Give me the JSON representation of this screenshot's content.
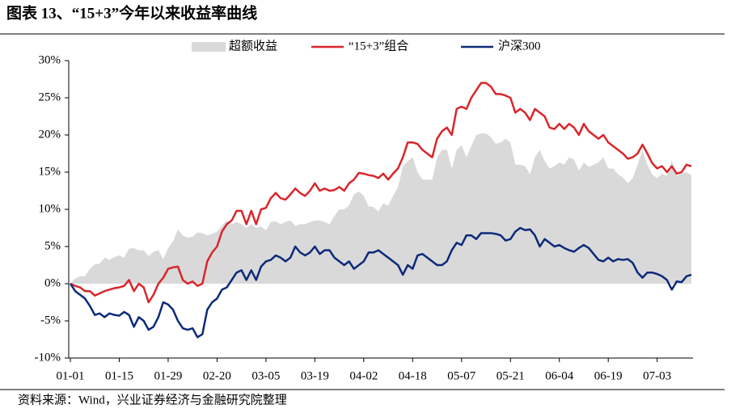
{
  "chart_data": {
    "type": "line",
    "title": "图表 13、“15+3”今年以来收益率曲线",
    "source": "资料来源：Wind，兴业证券经济与金融研究院整理",
    "categories": [
      "01-01",
      null,
      null,
      null,
      null,
      null,
      null,
      null,
      null,
      null,
      "01-15",
      null,
      null,
      null,
      null,
      null,
      null,
      null,
      null,
      null,
      "01-29",
      null,
      null,
      null,
      null,
      null,
      null,
      null,
      null,
      null,
      "02-20",
      null,
      null,
      null,
      null,
      null,
      null,
      null,
      null,
      null,
      "03-05",
      null,
      null,
      null,
      null,
      null,
      null,
      null,
      null,
      null,
      "03-19",
      null,
      null,
      null,
      null,
      null,
      null,
      null,
      null,
      null,
      "04-02",
      null,
      null,
      null,
      null,
      null,
      null,
      null,
      null,
      null,
      "04-18",
      null,
      null,
      null,
      null,
      null,
      null,
      null,
      null,
      null,
      "05-07",
      null,
      null,
      null,
      null,
      null,
      null,
      null,
      null,
      null,
      "05-21",
      null,
      null,
      null,
      null,
      null,
      null,
      null,
      null,
      null,
      "06-04",
      null,
      null,
      null,
      null,
      null,
      null,
      null,
      null,
      null,
      "06-19",
      null,
      null,
      null,
      null,
      null,
      null,
      null,
      null,
      null,
      "07-03",
      null,
      null,
      null,
      null,
      null,
      null,
      null
    ],
    "ylim": [
      -10,
      30
    ],
    "yticks": [
      {
        "value": -10,
        "label": "-10%"
      },
      {
        "value": -5,
        "label": "-5%"
      },
      {
        "value": 0,
        "label": "0%"
      },
      {
        "value": 5,
        "label": "5%"
      },
      {
        "value": 10,
        "label": "10%"
      },
      {
        "value": 15,
        "label": "15%"
      },
      {
        "value": 20,
        "label": "20%"
      },
      {
        "value": 25,
        "label": "25%"
      },
      {
        "value": 30,
        "label": "30%"
      }
    ],
    "grid": false,
    "legend": "top",
    "series": [
      {
        "name": "超额收益",
        "type": "area",
        "color": "#d9d9d9",
        "values": [
          0,
          0.7,
          1,
          1,
          2,
          2.6,
          2.7,
          3.5,
          3.2,
          3.6,
          3.8,
          3.5,
          4.7,
          4.8,
          4.5,
          4.5,
          3.7,
          4.3,
          4.5,
          3.3,
          4.8,
          5.7,
          7.3,
          6.5,
          6.2,
          6.3,
          6.9,
          6.8,
          6.5,
          6.7,
          7,
          7.8,
          8.5,
          8,
          8.3,
          8,
          7.5,
          8,
          7.5,
          7.7,
          7.2,
          8.3,
          8.4,
          8,
          8.3,
          8.5,
          7.8,
          8,
          8,
          8.3,
          8.5,
          8.5,
          8.3,
          8,
          9.1,
          10,
          10,
          10.5,
          12,
          12.4,
          11.8,
          10.4,
          10.3,
          9.7,
          10.8,
          10.5,
          11.8,
          13,
          15.8,
          16.5,
          17,
          15,
          14,
          14,
          14,
          17,
          18,
          18,
          15.5,
          18,
          18.6,
          17,
          18.5,
          20,
          20.2,
          20.2,
          19.7,
          18.8,
          19,
          19.5,
          19,
          16,
          16,
          15.8,
          14.7,
          17,
          18,
          16.5,
          15.5,
          15.8,
          16.3,
          16,
          17,
          16.7,
          15.2,
          16.3,
          15.7,
          16,
          16.3,
          17,
          15.5,
          15.5,
          14.7,
          14.3,
          13.5,
          14.2,
          16,
          17.9,
          16,
          14.7,
          14.2,
          14.8,
          14.5,
          16.6,
          14.5,
          14.8,
          15,
          14.6
        ]
      },
      {
        "name": "“15+3”组合",
        "type": "line",
        "color": "#d9262b",
        "values": [
          0,
          -0.3,
          -0.5,
          -1,
          -1,
          -1.6,
          -1.3,
          -1,
          -0.8,
          -0.6,
          -0.5,
          -0.3,
          0.5,
          -1,
          0,
          -0.5,
          -2.5,
          -1.5,
          0,
          0.8,
          2,
          2.2,
          2.3,
          0.5,
          0,
          0.3,
          -0.3,
          0,
          3,
          4.2,
          5,
          7,
          8,
          8.5,
          9.8,
          9.8,
          8,
          9.8,
          8,
          10,
          10.2,
          11.5,
          12.2,
          11.5,
          11.3,
          12,
          12.8,
          12.2,
          11.8,
          12.5,
          13.5,
          12.5,
          12.8,
          12.5,
          12.6,
          13,
          12.5,
          13.5,
          14,
          14.9,
          14.8,
          14.6,
          14.5,
          14.2,
          14.8,
          14,
          14.8,
          15.5,
          17,
          19,
          19,
          18.8,
          18,
          17.5,
          17,
          19.5,
          20.5,
          21,
          20,
          23.5,
          23.8,
          23.5,
          25,
          26,
          27,
          27,
          26.5,
          25.5,
          25.5,
          25.3,
          25,
          23,
          23.5,
          23,
          22,
          23.5,
          23,
          22.5,
          21,
          20.8,
          21.5,
          20.8,
          21.5,
          21,
          20,
          21.5,
          20.5,
          20,
          19.5,
          20,
          19,
          18.5,
          18,
          17.5,
          16.8,
          17,
          17.5,
          18.7,
          17.5,
          16.2,
          15.5,
          15.8,
          15,
          15.8,
          14.8,
          15,
          16,
          15.8
        ]
      },
      {
        "name": "沪深300",
        "type": "line",
        "color": "#0c2a7a",
        "values": [
          0,
          -1,
          -1.5,
          -2,
          -3,
          -4.2,
          -4,
          -4.5,
          -4,
          -4.2,
          -4.3,
          -3.8,
          -4.2,
          -5.8,
          -4.5,
          -5,
          -6.2,
          -5.8,
          -4.5,
          -2.5,
          -2.8,
          -3.5,
          -5,
          -6,
          -6.2,
          -6,
          -7.2,
          -6.8,
          -3.5,
          -2.5,
          -2,
          -0.8,
          -0.5,
          0.5,
          1.5,
          1.8,
          0.5,
          1.8,
          0.5,
          2.3,
          3,
          3.2,
          3.8,
          3.5,
          3,
          3.5,
          5,
          4.2,
          3.8,
          4.2,
          5,
          4,
          4.5,
          4.5,
          3.5,
          3,
          2.5,
          3,
          2,
          2.5,
          3,
          4.2,
          4.2,
          4.5,
          4,
          3.5,
          3,
          2.5,
          1.2,
          2.5,
          2,
          3.8,
          4,
          3.5,
          3,
          2.5,
          2.5,
          3,
          4.5,
          5.5,
          5.2,
          6.5,
          6.5,
          6,
          6.8,
          6.8,
          6.8,
          6.7,
          6.5,
          5.8,
          6,
          7,
          7.5,
          7.2,
          7.3,
          6.5,
          5,
          6,
          5.5,
          5,
          5.2,
          4.8,
          4.5,
          4.3,
          4.8,
          5.2,
          4.8,
          4,
          3.2,
          3,
          3.5,
          3,
          3.3,
          3.2,
          3.3,
          2.8,
          1.5,
          0.8,
          1.5,
          1.5,
          1.3,
          1,
          0.5,
          -0.8,
          0.3,
          0.2,
          1,
          1.2
        ]
      }
    ]
  }
}
